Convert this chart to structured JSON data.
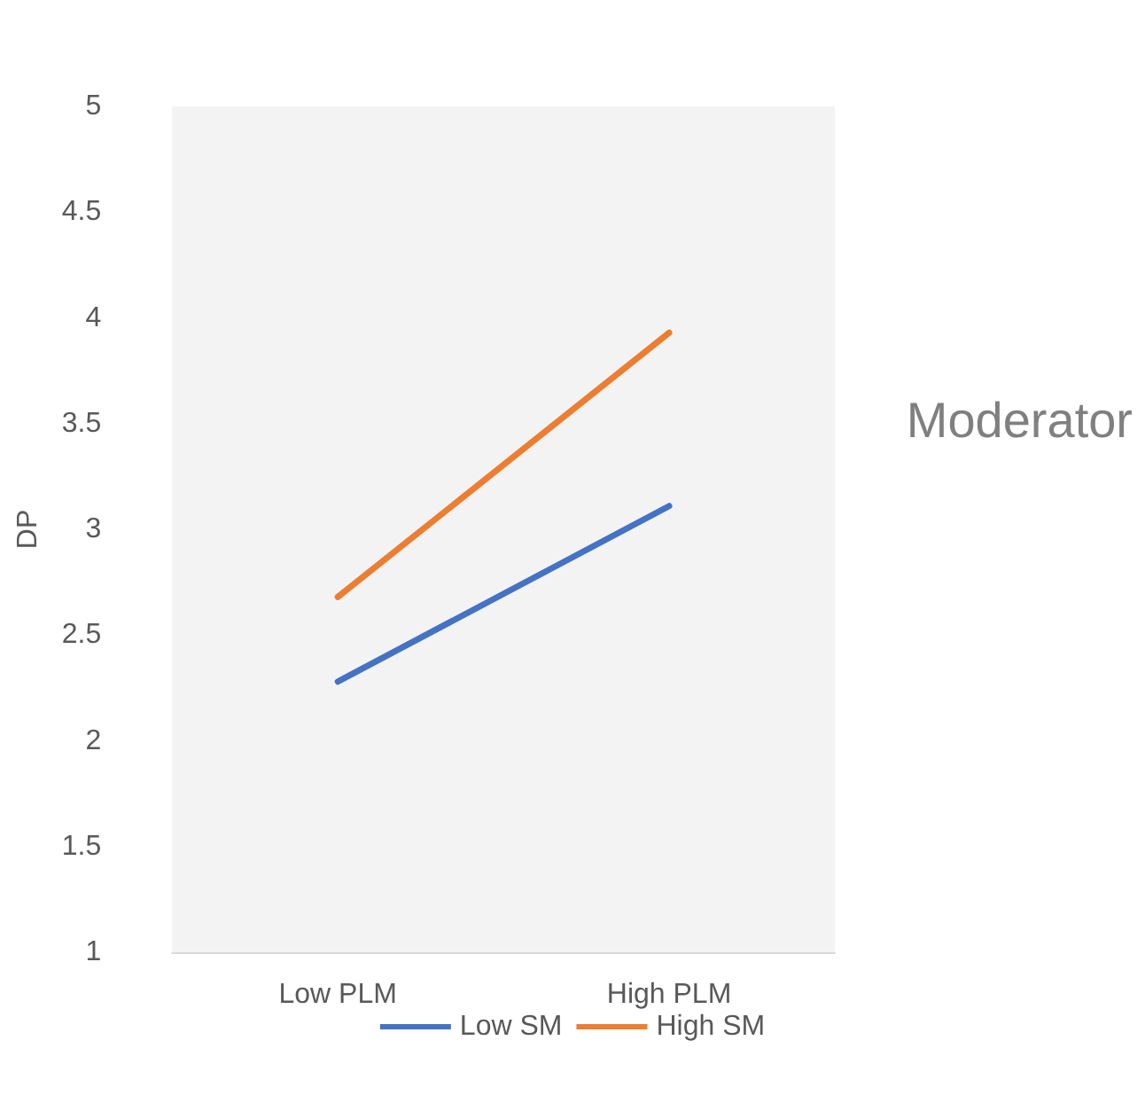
{
  "chart_data": {
    "type": "line",
    "title": "Moderator",
    "ylabel": "DP",
    "categories": [
      "Low PLM",
      "High PLM"
    ],
    "series": [
      {
        "name": "Low SM",
        "color": "#4472c4",
        "values": [
          2.28,
          3.11
        ]
      },
      {
        "name": "High SM",
        "color": "#ed7d31",
        "values": [
          2.68,
          3.93
        ]
      }
    ],
    "ylim": [
      1,
      5
    ],
    "yticks": [
      1,
      1.5,
      2,
      2.5,
      3,
      3.5,
      4,
      4.5,
      5
    ],
    "grid": false,
    "legend": "bottom",
    "marker": "none",
    "line_style": "solid"
  }
}
